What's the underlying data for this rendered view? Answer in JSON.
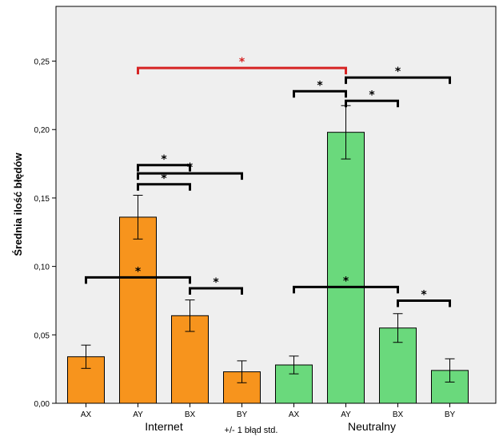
{
  "colors": {
    "internet": "#f7941d",
    "neutralny": "#6ad97c",
    "plot_background": "#efefef",
    "significance_default": "#000000",
    "significance_highlight": "#d62424"
  },
  "chart_data": {
    "type": "bar",
    "ylabel": "Średnia ilość błędów",
    "note": "+/- 1 błąd std.",
    "ylim": [
      0,
      0.29
    ],
    "yticks": [
      {
        "value": 0.0,
        "label": "0,00"
      },
      {
        "value": 0.05,
        "label": "0,05"
      },
      {
        "value": 0.1,
        "label": "0,10"
      },
      {
        "value": 0.15,
        "label": "0,15"
      },
      {
        "value": 0.2,
        "label": "0,20"
      },
      {
        "value": 0.25,
        "label": "0,25"
      }
    ],
    "groups": [
      {
        "name": "Internet",
        "color_key": "internet",
        "categories": [
          "AX",
          "AY",
          "BX",
          "BY"
        ]
      },
      {
        "name": "Neutralny",
        "color_key": "neutralny",
        "categories": [
          "AX",
          "AY",
          "BX",
          "BY"
        ]
      }
    ],
    "series": [
      {
        "name": "Internet",
        "values": [
          0.034,
          0.136,
          0.064,
          0.023
        ],
        "errors": [
          0.0085,
          0.016,
          0.0115,
          0.008
        ]
      },
      {
        "name": "Neutralny",
        "values": [
          0.028,
          0.198,
          0.055,
          0.024
        ],
        "errors": [
          0.0065,
          0.0195,
          0.0105,
          0.0085
        ]
      }
    ],
    "significance": [
      {
        "from": 1,
        "to": 2,
        "y": 0.174,
        "label": "*",
        "color_key": "significance_default"
      },
      {
        "from": 1,
        "to": 3,
        "y": 0.168,
        "label": "*",
        "color_key": "significance_default"
      },
      {
        "from": 1,
        "to": 2,
        "y": 0.16,
        "label": "*",
        "color_key": "significance_default"
      },
      {
        "from": 0,
        "to": 2,
        "y": 0.092,
        "label": "*",
        "color_key": "significance_default"
      },
      {
        "from": 2,
        "to": 3,
        "y": 0.084,
        "label": "*",
        "color_key": "significance_default"
      },
      {
        "from": 1,
        "to": 5,
        "y": 0.245,
        "label": "*",
        "color_key": "significance_highlight"
      },
      {
        "from": 4,
        "to": 5,
        "y": 0.228,
        "label": "*",
        "color_key": "significance_default"
      },
      {
        "from": 5,
        "to": 7,
        "y": 0.238,
        "label": "*",
        "color_key": "significance_default"
      },
      {
        "from": 5,
        "to": 6,
        "y": 0.221,
        "label": "*",
        "color_key": "significance_default"
      },
      {
        "from": 4,
        "to": 6,
        "y": 0.085,
        "label": "*",
        "color_key": "significance_default"
      },
      {
        "from": 6,
        "to": 7,
        "y": 0.075,
        "label": "*",
        "color_key": "significance_default"
      }
    ]
  }
}
